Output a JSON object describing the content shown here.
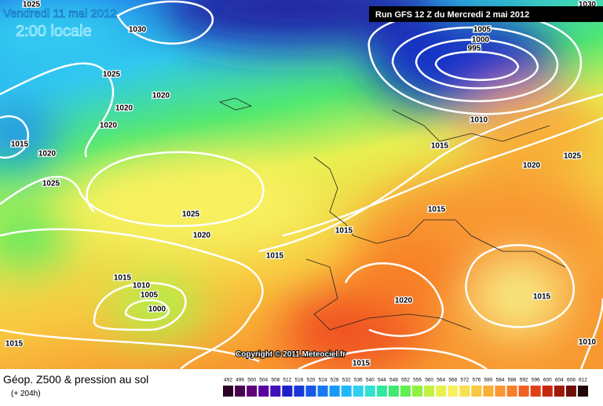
{
  "header": {
    "date": "Vendredi 11 mai 2012",
    "time": "2:00 locale",
    "run": "Run GFS 12 Z du Mercredi 2 mai 2012"
  },
  "copyright": "Copyright © 2011 Meteociel.fr",
  "footer": {
    "title": "Géop. Z500 & pression au sol",
    "lead": "(+ 204h)"
  },
  "isobars": {
    "labels": [
      "1025",
      "1030",
      "1025",
      "1020",
      "1020",
      "1020",
      "1015",
      "1020",
      "1025",
      "1025",
      "1020",
      "1015",
      "1010",
      "1005",
      "1000",
      "1015",
      "1015",
      "1015",
      "1015",
      "1015",
      "1010",
      "1005",
      "1000",
      "995",
      "1020",
      "1025",
      "1020",
      "1015",
      "1010",
      "1015",
      "1030"
    ]
  },
  "legend": {
    "labels": [
      "492",
      "496",
      "500",
      "504",
      "508",
      "512",
      "516",
      "520",
      "524",
      "528",
      "532",
      "536",
      "540",
      "544",
      "548",
      "552",
      "556",
      "560",
      "564",
      "568",
      "572",
      "576",
      "580",
      "584",
      "588",
      "592",
      "596",
      "600",
      "604",
      "608",
      "612"
    ],
    "colors": [
      "#2a0028",
      "#4a0050",
      "#600078",
      "#5a00a0",
      "#4010b8",
      "#2020c8",
      "#1838d8",
      "#1858e8",
      "#1878f0",
      "#1898f8",
      "#20b8f8",
      "#30d0f0",
      "#30e0d0",
      "#30e8a0",
      "#40e870",
      "#60f050",
      "#90f040",
      "#c0f040",
      "#e8f050",
      "#f8f060",
      "#f8e050",
      "#f8c840",
      "#f8b038",
      "#f89830",
      "#f88028",
      "#f06020",
      "#e04018",
      "#c82810",
      "#a01808",
      "#701008",
      "#200808"
    ]
  }
}
